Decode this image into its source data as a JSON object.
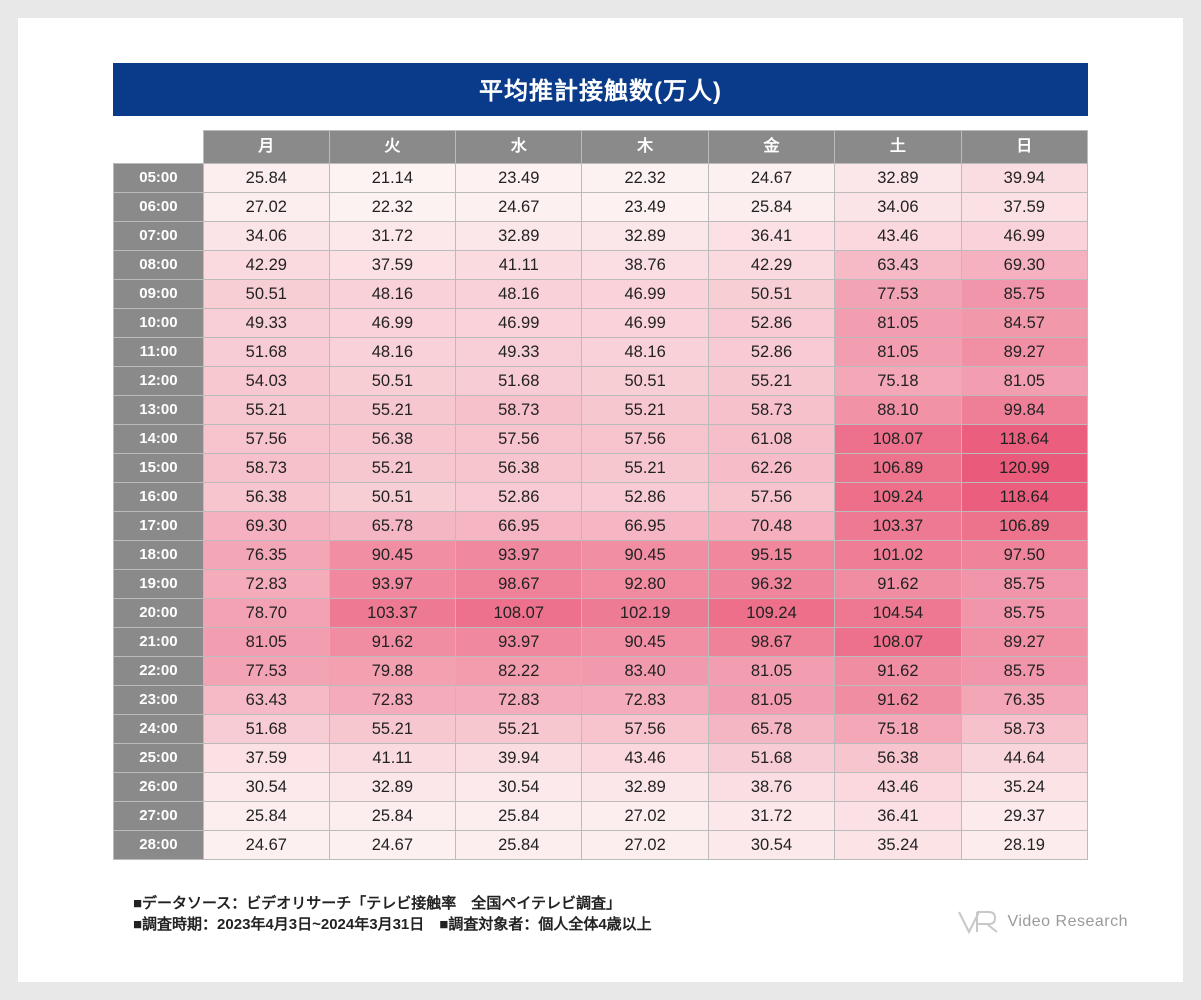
{
  "title": "平均推計接触数(万人)",
  "heatmap": {
    "type": "heatmap-table",
    "columns": [
      "月",
      "火",
      "水",
      "木",
      "金",
      "土",
      "日"
    ],
    "row_headers": [
      "05:00",
      "06:00",
      "07:00",
      "08:00",
      "09:00",
      "10:00",
      "11:00",
      "12:00",
      "13:00",
      "14:00",
      "15:00",
      "16:00",
      "17:00",
      "18:00",
      "19:00",
      "20:00",
      "21:00",
      "22:00",
      "23:00",
      "24:00",
      "25:00",
      "26:00",
      "27:00",
      "28:00"
    ],
    "rows": [
      [
        25.84,
        21.14,
        23.49,
        22.32,
        24.67,
        32.89,
        39.94
      ],
      [
        27.02,
        22.32,
        24.67,
        23.49,
        25.84,
        34.06,
        37.59
      ],
      [
        34.06,
        31.72,
        32.89,
        32.89,
        36.41,
        43.46,
        46.99
      ],
      [
        42.29,
        37.59,
        41.11,
        38.76,
        42.29,
        63.43,
        69.3
      ],
      [
        50.51,
        48.16,
        48.16,
        46.99,
        50.51,
        77.53,
        85.75
      ],
      [
        49.33,
        46.99,
        46.99,
        46.99,
        52.86,
        81.05,
        84.57
      ],
      [
        51.68,
        48.16,
        49.33,
        48.16,
        52.86,
        81.05,
        89.27
      ],
      [
        54.03,
        50.51,
        51.68,
        50.51,
        55.21,
        75.18,
        81.05
      ],
      [
        55.21,
        55.21,
        58.73,
        55.21,
        58.73,
        88.1,
        99.84
      ],
      [
        57.56,
        56.38,
        57.56,
        57.56,
        61.08,
        108.07,
        118.64
      ],
      [
        58.73,
        55.21,
        56.38,
        55.21,
        62.26,
        106.89,
        120.99
      ],
      [
        56.38,
        50.51,
        52.86,
        52.86,
        57.56,
        109.24,
        118.64
      ],
      [
        69.3,
        65.78,
        66.95,
        66.95,
        70.48,
        103.37,
        106.89
      ],
      [
        76.35,
        90.45,
        93.97,
        90.45,
        95.15,
        101.02,
        97.5
      ],
      [
        72.83,
        93.97,
        98.67,
        92.8,
        96.32,
        91.62,
        85.75
      ],
      [
        78.7,
        103.37,
        108.07,
        102.19,
        109.24,
        104.54,
        85.75
      ],
      [
        81.05,
        91.62,
        93.97,
        90.45,
        98.67,
        108.07,
        89.27
      ],
      [
        77.53,
        79.88,
        82.22,
        83.4,
        81.05,
        91.62,
        85.75
      ],
      [
        63.43,
        72.83,
        72.83,
        72.83,
        81.05,
        91.62,
        76.35
      ],
      [
        51.68,
        55.21,
        55.21,
        57.56,
        65.78,
        75.18,
        58.73
      ],
      [
        37.59,
        41.11,
        39.94,
        43.46,
        51.68,
        56.38,
        44.64
      ],
      [
        30.54,
        32.89,
        30.54,
        32.89,
        38.76,
        43.46,
        35.24
      ],
      [
        25.84,
        25.84,
        25.84,
        27.02,
        31.72,
        36.41,
        29.37
      ],
      [
        24.67,
        24.67,
        25.84,
        27.02,
        30.54,
        35.24,
        28.19
      ]
    ],
    "value_min": 21.14,
    "value_max": 120.99,
    "color_low": "#fdf3f3",
    "color_high": "#ea5a7a",
    "header_bg": "#8a8a8a",
    "header_fg": "#ffffff",
    "title_bg": "#0a3a8a",
    "title_fg": "#ffffff",
    "border_color": "#bbbbbb",
    "cell_fontsize": 16.5,
    "header_fontsize": 16,
    "title_fontsize": 24
  },
  "footer": {
    "line1": "■データソース：ビデオリサーチ「テレビ接触率　全国ペイテレビ調査」",
    "line2": "■調査時期：2023年4月3日~2024年3月31日　■調査対象者：個人全体4歳以上"
  },
  "logo_text": "Video Research"
}
